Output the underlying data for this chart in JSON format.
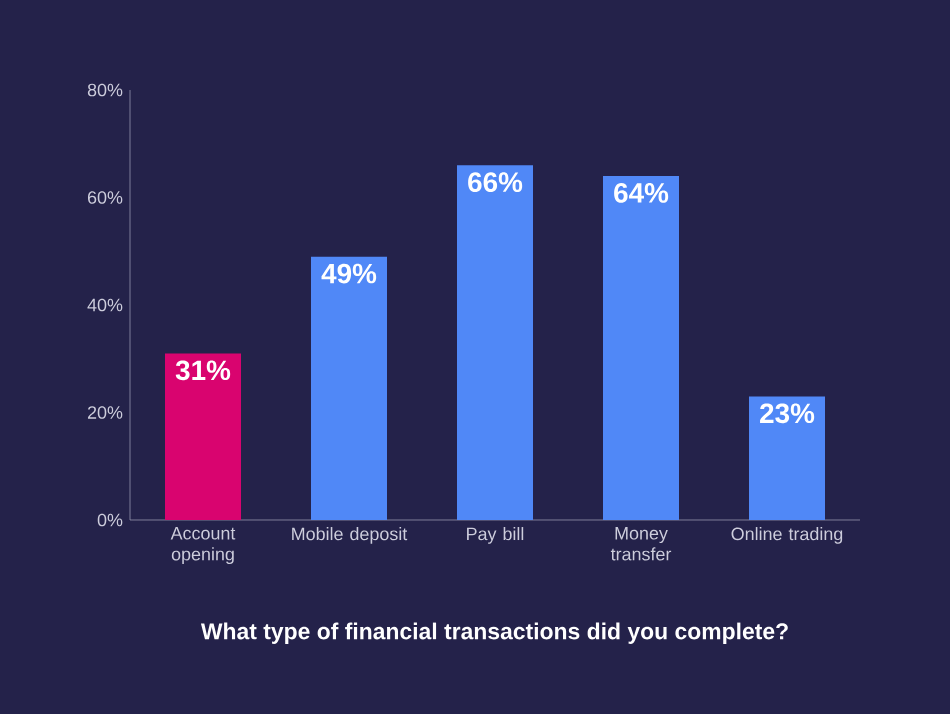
{
  "chart_data": {
    "type": "bar",
    "title": "What type of financial transactions did you complete?",
    "categories": [
      "Account opening",
      "Mobile deposit",
      "Pay bill",
      "Money transfer",
      "Online trading"
    ],
    "values": [
      31,
      49,
      66,
      64,
      23
    ],
    "colors": [
      "#d9046f",
      "#5088f7",
      "#5088f7",
      "#5088f7",
      "#5088f7"
    ],
    "value_labels": [
      "31%",
      "49%",
      "66%",
      "64%",
      "23%"
    ],
    "ylim": [
      0,
      80
    ],
    "yticks": [
      {
        "value": 0,
        "label": "0%"
      },
      {
        "value": 20,
        "label": "20%"
      },
      {
        "value": 40,
        "label": "40%"
      },
      {
        "value": 60,
        "label": "60%"
      },
      {
        "value": 80,
        "label": "80%"
      }
    ]
  }
}
